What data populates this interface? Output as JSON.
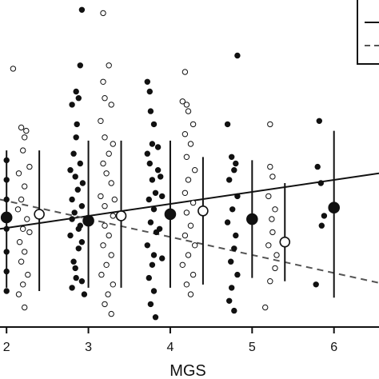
{
  "chart_data": {
    "type": "scatter",
    "xlabel": "MGS",
    "ylabel": "",
    "xlim": [
      1.92,
      6.55
    ],
    "ylim": [
      0,
      10
    ],
    "x_ticks": [
      "2",
      "3",
      "4",
      "5",
      "6"
    ],
    "grid": false,
    "legend_position": "top-right",
    "colors": {
      "ink": "#111111",
      "dashed_line": "#555555",
      "background": "#ffffff"
    },
    "series": [
      {
        "marker": "filled",
        "linestyle": "solid",
        "trend": {
          "x": [
            1.92,
            6.55
          ],
          "y": [
            3.0,
            4.7
          ]
        },
        "means": [
          {
            "x": 2,
            "y": 3.35,
            "lo": 1.2,
            "hi": 5.4
          },
          {
            "x": 3,
            "y": 3.25,
            "lo": 1.2,
            "hi": 5.7
          },
          {
            "x": 4,
            "y": 3.45,
            "lo": 1.2,
            "hi": 5.7
          },
          {
            "x": 5,
            "y": 3.3,
            "lo": 1.5,
            "hi": 5.1
          },
          {
            "x": 6,
            "y": 3.65,
            "lo": 0.9,
            "hi": 6.0
          }
        ],
        "points": [
          [
            2.0,
            1.1
          ],
          [
            2.0,
            1.7
          ],
          [
            2.0,
            2.3
          ],
          [
            2.0,
            3.0
          ],
          [
            2.0,
            3.9
          ],
          [
            2.0,
            4.5
          ],
          [
            2.0,
            5.1
          ],
          [
            2.8,
            1.2
          ],
          [
            2.85,
            1.5
          ],
          [
            2.82,
            2.0
          ],
          [
            2.88,
            2.4
          ],
          [
            2.78,
            2.8
          ],
          [
            2.9,
            3.1
          ],
          [
            2.83,
            3.5
          ],
          [
            2.8,
            3.9
          ],
          [
            2.87,
            4.2
          ],
          [
            2.84,
            4.6
          ],
          [
            2.9,
            5.0
          ],
          [
            2.82,
            5.3
          ],
          [
            2.86,
            6.2
          ],
          [
            2.8,
            6.8
          ],
          [
            2.88,
            7.0
          ],
          [
            2.85,
            5.8
          ],
          [
            2.78,
            4.8
          ],
          [
            2.92,
            3.7
          ],
          [
            2.92,
            9.7
          ],
          [
            2.9,
            8.0
          ],
          [
            2.85,
            7.2
          ],
          [
            2.93,
            4.4
          ],
          [
            2.8,
            3.3
          ],
          [
            2.92,
            2.6
          ],
          [
            2.84,
            1.8
          ],
          [
            2.95,
            1.0
          ],
          [
            2.92,
            1.4
          ],
          [
            2.88,
            3.0
          ],
          [
            3.72,
            7.5
          ],
          [
            3.75,
            7.2
          ],
          [
            3.76,
            6.6
          ],
          [
            3.8,
            6.2
          ],
          [
            3.78,
            5.6
          ],
          [
            3.72,
            5.3
          ],
          [
            3.75,
            5.0
          ],
          [
            3.85,
            4.8
          ],
          [
            3.78,
            4.5
          ],
          [
            3.82,
            4.1
          ],
          [
            3.74,
            3.9
          ],
          [
            3.8,
            3.6
          ],
          [
            3.76,
            3.2
          ],
          [
            3.83,
            2.9
          ],
          [
            3.72,
            2.5
          ],
          [
            3.8,
            2.2
          ],
          [
            3.78,
            1.9
          ],
          [
            3.74,
            1.5
          ],
          [
            3.8,
            1.1
          ],
          [
            3.76,
            0.7
          ],
          [
            3.82,
            0.3
          ],
          [
            3.88,
            4.6
          ],
          [
            3.87,
            3.0
          ],
          [
            3.9,
            2.1
          ],
          [
            3.85,
            5.5
          ],
          [
            3.9,
            4.0
          ],
          [
            4.7,
            6.2
          ],
          [
            4.75,
            5.2
          ],
          [
            4.8,
            5.0
          ],
          [
            4.78,
            4.8
          ],
          [
            4.72,
            4.5
          ],
          [
            4.82,
            4.0
          ],
          [
            4.76,
            3.6
          ],
          [
            4.7,
            3.2
          ],
          [
            4.8,
            2.8
          ],
          [
            4.78,
            2.4
          ],
          [
            4.74,
            2.0
          ],
          [
            4.82,
            1.6
          ],
          [
            4.75,
            1.2
          ],
          [
            4.72,
            0.8
          ],
          [
            4.78,
            0.5
          ],
          [
            4.82,
            8.3
          ],
          [
            5.82,
            6.3
          ],
          [
            5.78,
            1.3
          ],
          [
            5.85,
            3.1
          ],
          [
            5.84,
            4.4
          ],
          [
            5.8,
            4.9
          ],
          [
            5.88,
            3.4
          ]
        ]
      },
      {
        "marker": "open",
        "linestyle": "dashed",
        "trend": {
          "x": [
            1.92,
            6.55
          ],
          "y": [
            3.9,
            1.35
          ]
        },
        "means": [
          {
            "x": 2.4,
            "y": 3.45,
            "lo": 1.1,
            "hi": 5.4
          },
          {
            "x": 3.4,
            "y": 3.4,
            "lo": 1.2,
            "hi": 5.7
          },
          {
            "x": 4.4,
            "y": 3.55,
            "lo": 1.3,
            "hi": 5.2
          },
          {
            "x": 5.4,
            "y": 2.6,
            "lo": 1.4,
            "hi": 4.4
          }
        ],
        "points": [
          [
            2.08,
            7.9
          ],
          [
            2.18,
            6.1
          ],
          [
            2.22,
            5.8
          ],
          [
            2.2,
            5.4
          ],
          [
            2.15,
            4.7
          ],
          [
            2.22,
            4.3
          ],
          [
            2.18,
            3.9
          ],
          [
            2.14,
            3.6
          ],
          [
            2.25,
            3.3
          ],
          [
            2.2,
            3.0
          ],
          [
            2.16,
            2.6
          ],
          [
            2.22,
            2.3
          ],
          [
            2.18,
            2.0
          ],
          [
            2.26,
            1.6
          ],
          [
            2.2,
            1.3
          ],
          [
            2.15,
            1.0
          ],
          [
            2.22,
            0.6
          ],
          [
            2.28,
            4.9
          ],
          [
            2.24,
            6.0
          ],
          [
            2.28,
            2.9
          ],
          [
            3.18,
            9.6
          ],
          [
            3.25,
            8.0
          ],
          [
            3.18,
            7.5
          ],
          [
            3.2,
            7.0
          ],
          [
            3.28,
            6.8
          ],
          [
            3.15,
            6.3
          ],
          [
            3.2,
            5.8
          ],
          [
            3.3,
            5.6
          ],
          [
            3.25,
            5.3
          ],
          [
            3.18,
            5.0
          ],
          [
            3.22,
            4.7
          ],
          [
            3.28,
            4.4
          ],
          [
            3.15,
            4.0
          ],
          [
            3.2,
            3.7
          ],
          [
            3.3,
            3.4
          ],
          [
            3.2,
            3.1
          ],
          [
            3.25,
            2.8
          ],
          [
            3.18,
            2.5
          ],
          [
            3.28,
            2.2
          ],
          [
            3.22,
            1.9
          ],
          [
            3.16,
            1.6
          ],
          [
            3.3,
            1.3
          ],
          [
            3.24,
            1.0
          ],
          [
            3.2,
            0.7
          ],
          [
            3.28,
            0.4
          ],
          [
            3.32,
            3.9
          ],
          [
            4.15,
            6.9
          ],
          [
            4.2,
            6.8
          ],
          [
            4.22,
            6.6
          ],
          [
            4.28,
            6.2
          ],
          [
            4.18,
            5.9
          ],
          [
            4.25,
            5.6
          ],
          [
            4.2,
            5.2
          ],
          [
            4.3,
            4.8
          ],
          [
            4.22,
            4.5
          ],
          [
            4.18,
            4.1
          ],
          [
            4.28,
            3.8
          ],
          [
            4.2,
            3.5
          ],
          [
            4.25,
            3.1
          ],
          [
            4.18,
            2.8
          ],
          [
            4.3,
            2.5
          ],
          [
            4.22,
            2.2
          ],
          [
            4.15,
            1.9
          ],
          [
            4.28,
            1.6
          ],
          [
            4.2,
            1.3
          ],
          [
            4.25,
            1.0
          ],
          [
            4.18,
            7.8
          ],
          [
            5.22,
            4.9
          ],
          [
            5.25,
            4.6
          ],
          [
            5.2,
            4.0
          ],
          [
            5.28,
            3.6
          ],
          [
            5.25,
            2.9
          ],
          [
            5.2,
            2.5
          ],
          [
            5.28,
            1.8
          ],
          [
            5.22,
            1.4
          ],
          [
            5.3,
            2.2
          ],
          [
            5.24,
            3.3
          ],
          [
            5.16,
            0.6
          ],
          [
            5.22,
            6.2
          ]
        ]
      }
    ]
  }
}
